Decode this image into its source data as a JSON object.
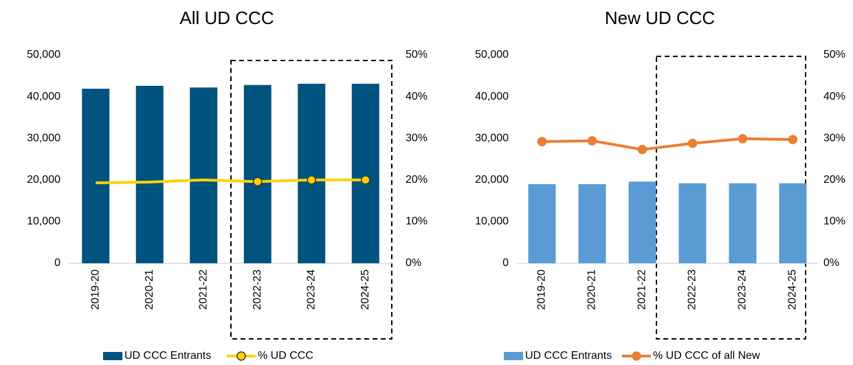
{
  "chart_data": [
    {
      "type": "bar",
      "title": "All UD CCC",
      "categories": [
        "2019-20",
        "2020-21",
        "2021-22",
        "2022-23",
        "2023-24",
        "2024-25"
      ],
      "series": [
        {
          "name": "UD CCC Entrants",
          "type": "bar",
          "color": "#00527f",
          "values": [
            41900,
            42600,
            42200,
            42800,
            43100,
            43100
          ]
        },
        {
          "name": "% UD CCC",
          "type": "line",
          "axis": "y2",
          "color": "#ffd200",
          "marker_edge": "#3a3a3a",
          "markers": [
            false,
            false,
            false,
            true,
            true,
            true
          ],
          "values": [
            19.3,
            19.5,
            20.0,
            19.6,
            20.0,
            20.0
          ]
        }
      ],
      "ylim": [
        0,
        50000
      ],
      "yticks": [
        0,
        {
          "value": 10000,
          "label": "10,000"
        },
        {
          "value": 20000,
          "label": "20,000"
        },
        {
          "value": 30000,
          "label": "30,000"
        },
        {
          "value": 40000,
          "label": "40,000"
        },
        {
          "value": 50000,
          "label": "50,000"
        }
      ],
      "y2lim": [
        0,
        50
      ],
      "y2ticks": [
        {
          "value": 0,
          "label": "0%"
        },
        {
          "value": 10,
          "label": "10%"
        },
        {
          "value": 20,
          "label": "20%"
        },
        {
          "value": 30,
          "label": "30%"
        },
        {
          "value": 40,
          "label": "40%"
        },
        {
          "value": 50,
          "label": "50%"
        }
      ],
      "legend": "bottom"
    },
    {
      "type": "bar",
      "title": "New UD CCC",
      "categories": [
        "2019-20",
        "2020-21",
        "2021-22",
        "2022-23",
        "2023-24",
        "2024-25"
      ],
      "series": [
        {
          "name": "UD CCC Entrants",
          "type": "bar",
          "color": "#5b9bd5",
          "values": [
            19000,
            19000,
            19600,
            19200,
            19200,
            19200
          ]
        },
        {
          "name": "% UD CCC of all New",
          "type": "line",
          "axis": "y2",
          "color": "#ed7d31",
          "marker_edge": "#ed7d31",
          "markers": [
            true,
            true,
            true,
            true,
            true,
            true
          ],
          "values": [
            29.2,
            29.4,
            27.3,
            28.8,
            29.9,
            29.7
          ]
        }
      ],
      "ylim": [
        0,
        50000
      ],
      "yticks": [
        0,
        {
          "value": 10000,
          "label": "10,000"
        },
        {
          "value": 20000,
          "label": "20,000"
        },
        {
          "value": 30000,
          "label": "30,000"
        },
        {
          "value": 40000,
          "label": "40,000"
        },
        {
          "value": 50000,
          "label": "50,000"
        }
      ],
      "y2lim": [
        0,
        50
      ],
      "y2ticks": [
        {
          "value": 0,
          "label": "0%"
        },
        {
          "value": 10,
          "label": "10%"
        },
        {
          "value": 20,
          "label": "20%"
        },
        {
          "value": 30,
          "label": "30%"
        },
        {
          "value": 40,
          "label": "40%"
        },
        {
          "value": 50,
          "label": "50%"
        }
      ],
      "legend": "bottom"
    }
  ]
}
